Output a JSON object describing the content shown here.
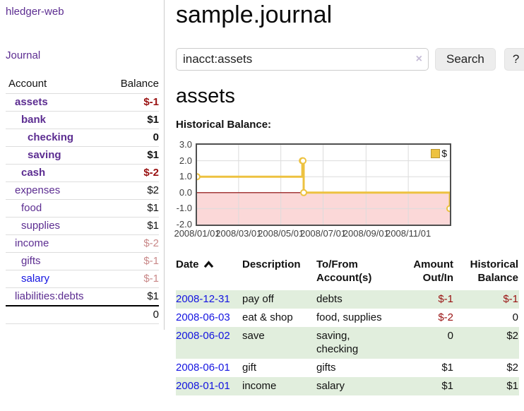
{
  "colors": {
    "link_purple": "#5c2d91",
    "link_blue": "#1414e1",
    "negative_red": "#991111",
    "negative_faded": "#c98888",
    "row_green": "#e1eedd",
    "chart_gold": "#edc240",
    "chart_negative_fill": "#fbd8d8",
    "chart_zero_line": "#8b0000",
    "chart_grid": "#dcdcdc"
  },
  "sidebar": {
    "app_title": "hledger-web",
    "nav": {
      "journal_label": "Journal"
    },
    "accounts_table": {
      "headers": {
        "account": "Account",
        "balance": "Balance"
      },
      "rows": [
        {
          "name": "assets",
          "balance": "$-1",
          "indent": 1,
          "bold": true,
          "balance_style": "negative",
          "link_style": "purple"
        },
        {
          "name": "bank",
          "balance": "$1",
          "indent": 2,
          "bold": true,
          "balance_style": "normal",
          "link_style": "purple"
        },
        {
          "name": "checking",
          "balance": "0",
          "indent": 3,
          "bold": true,
          "balance_style": "normal",
          "link_style": "purple"
        },
        {
          "name": "saving",
          "balance": "$1",
          "indent": 3,
          "bold": true,
          "balance_style": "normal",
          "link_style": "purple"
        },
        {
          "name": "cash",
          "balance": "$-2",
          "indent": 2,
          "bold": true,
          "balance_style": "negative",
          "link_style": "purple"
        },
        {
          "name": "expenses",
          "balance": "$2",
          "indent": 1,
          "bold": false,
          "balance_style": "normal",
          "link_style": "purple"
        },
        {
          "name": "food",
          "balance": "$1",
          "indent": 2,
          "bold": false,
          "balance_style": "normal",
          "link_style": "purple"
        },
        {
          "name": "supplies",
          "balance": "$1",
          "indent": 2,
          "bold": false,
          "balance_style": "normal",
          "link_style": "purple"
        },
        {
          "name": "income",
          "balance": "$-2",
          "indent": 1,
          "bold": false,
          "balance_style": "faded",
          "link_style": "purple"
        },
        {
          "name": "gifts",
          "balance": "$-1",
          "indent": 2,
          "bold": false,
          "balance_style": "faded",
          "link_style": "purple"
        },
        {
          "name": "salary",
          "balance": "$-1",
          "indent": 2,
          "bold": false,
          "balance_style": "faded",
          "link_style": "blue"
        },
        {
          "name": "liabilities:debts",
          "balance": "$1",
          "indent": 1,
          "bold": false,
          "balance_style": "normal",
          "link_style": "purple"
        }
      ],
      "total": "0"
    }
  },
  "main": {
    "title": "sample.journal",
    "search": {
      "value": "inacct:assets",
      "clear_icon": "×",
      "button_label": "Search",
      "help_label": "?"
    },
    "account_heading": "assets",
    "chart_label": "Historical Balance:"
  },
  "chart_data": {
    "type": "line",
    "step": true,
    "title": "Historical Balance",
    "legend": "$",
    "legend_position": "top-right",
    "grid": true,
    "xrange": [
      "2008-01-01",
      "2008-12-31"
    ],
    "ylim": [
      -2,
      3
    ],
    "yticks": [
      "3.0",
      "2.0",
      "1.0",
      "0.0",
      "-1.0",
      "-2.0"
    ],
    "xticks": [
      "2008/01/01",
      "2008/03/01",
      "2008/05/01",
      "2008/07/01",
      "2008/09/01",
      "2008/11/01"
    ],
    "series": [
      {
        "name": "$",
        "color": "#edc240",
        "points": [
          [
            "2008-01-01",
            1
          ],
          [
            "2008-06-01",
            2
          ],
          [
            "2008-06-02",
            2
          ],
          [
            "2008-06-03",
            0
          ],
          [
            "2008-12-31",
            -1
          ]
        ]
      }
    ],
    "negative_fill": "#fbd8d8",
    "zero_line_color": "#8b0000"
  },
  "register": {
    "headers": {
      "date": "Date",
      "description": "Description",
      "accounts": "To/From Account(s)",
      "amount": "Amount Out/In",
      "balance": "Historical Balance"
    },
    "sort": "date-ascending-indicator",
    "rows": [
      {
        "date": "2008-12-31",
        "description": "pay off",
        "accounts": "debts",
        "amount": "$-1",
        "balance": "$-1",
        "shaded": true
      },
      {
        "date": "2008-06-03",
        "description": "eat & shop",
        "accounts": "food, supplies",
        "amount": "$-2",
        "balance": "0",
        "shaded": false
      },
      {
        "date": "2008-06-02",
        "description": "save",
        "accounts": "saving, checking",
        "amount": "0",
        "balance": "$2",
        "shaded": true
      },
      {
        "date": "2008-06-01",
        "description": "gift",
        "accounts": "gifts",
        "amount": "$1",
        "balance": "$2",
        "shaded": false
      },
      {
        "date": "2008-01-01",
        "description": "income",
        "accounts": "salary",
        "amount": "$1",
        "balance": "$1",
        "shaded": true
      }
    ]
  }
}
